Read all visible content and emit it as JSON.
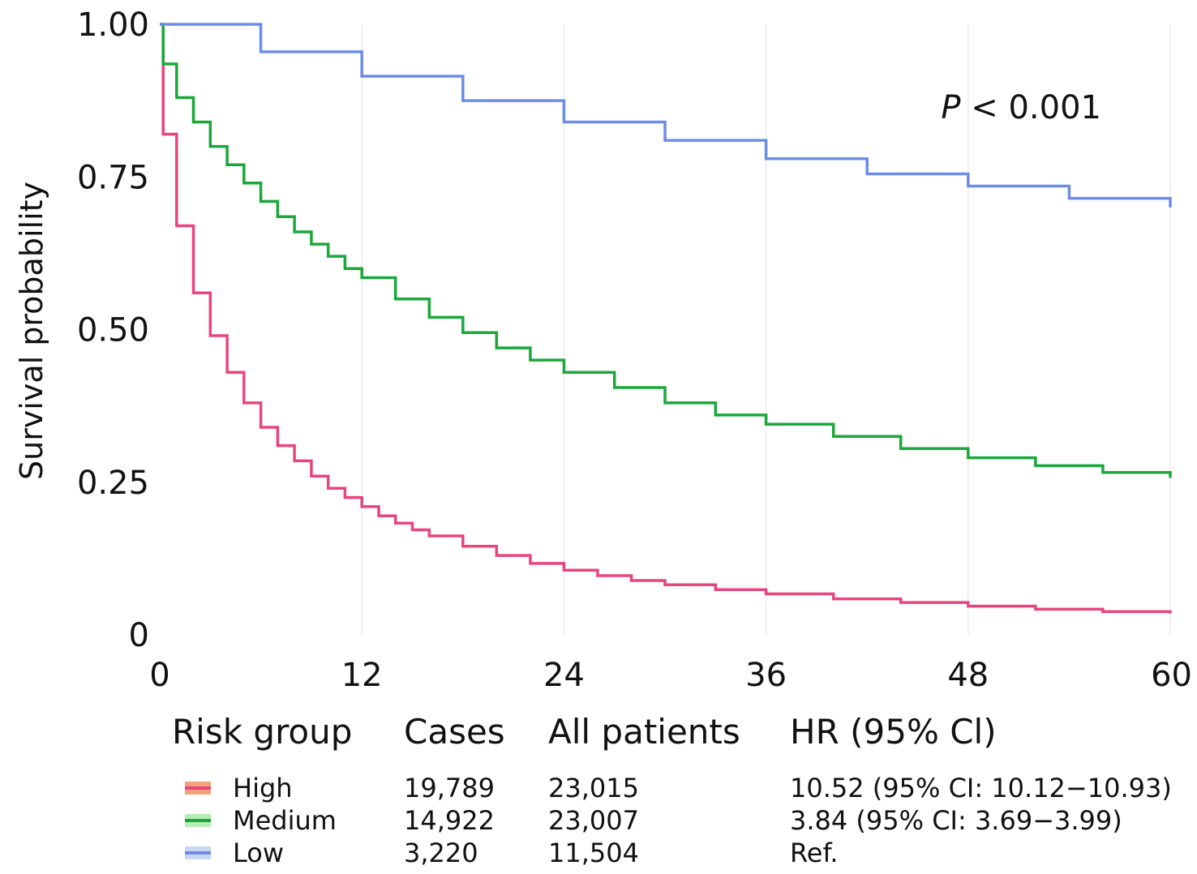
{
  "chart_data": {
    "type": "line",
    "ylabel": "Survival probability",
    "xlabel": "",
    "x_ticks": [
      "0",
      "12",
      "24",
      "36",
      "48",
      "60"
    ],
    "y_ticks": [
      "0",
      "0.25",
      "0.50",
      "0.75",
      "1.00"
    ],
    "xlim": [
      0,
      60
    ],
    "ylim": [
      0,
      1
    ],
    "grid": "vertical",
    "p_value": {
      "italic": "P",
      "rest": " < 0.001"
    },
    "series": [
      {
        "name": "High",
        "color": "#e8457c",
        "x": [
          0,
          0.2,
          1,
          2,
          3,
          4,
          5,
          6,
          7,
          8,
          9,
          10,
          11,
          12,
          13,
          14,
          15,
          16,
          18,
          20,
          22,
          24,
          26,
          28,
          30,
          33,
          36,
          40,
          44,
          48,
          52,
          56,
          60
        ],
        "y": [
          1.0,
          0.82,
          0.67,
          0.56,
          0.49,
          0.43,
          0.38,
          0.34,
          0.31,
          0.285,
          0.26,
          0.24,
          0.225,
          0.21,
          0.195,
          0.183,
          0.172,
          0.162,
          0.145,
          0.13,
          0.117,
          0.106,
          0.097,
          0.089,
          0.082,
          0.074,
          0.067,
          0.059,
          0.053,
          0.047,
          0.042,
          0.038,
          0.035
        ]
      },
      {
        "name": "Medium",
        "color": "#1aa83a",
        "x": [
          0,
          0.2,
          1,
          2,
          3,
          4,
          5,
          6,
          7,
          8,
          9,
          10,
          11,
          12,
          14,
          16,
          18,
          20,
          22,
          24,
          27,
          30,
          33,
          36,
          40,
          44,
          48,
          52,
          56,
          60
        ],
        "y": [
          1.0,
          0.935,
          0.88,
          0.84,
          0.8,
          0.77,
          0.74,
          0.71,
          0.685,
          0.66,
          0.64,
          0.62,
          0.6,
          0.585,
          0.55,
          0.52,
          0.495,
          0.47,
          0.45,
          0.43,
          0.405,
          0.38,
          0.36,
          0.345,
          0.325,
          0.305,
          0.29,
          0.277,
          0.266,
          0.257
        ]
      },
      {
        "name": "Low",
        "color": "#6b8de8",
        "x": [
          0,
          6,
          12,
          18,
          24,
          30,
          36,
          42,
          48,
          54,
          60
        ],
        "y": [
          1.0,
          0.955,
          0.915,
          0.875,
          0.84,
          0.81,
          0.78,
          0.755,
          0.735,
          0.715,
          0.7
        ]
      }
    ]
  },
  "legend": {
    "headers": [
      "Risk group",
      "Cases",
      "All patients",
      "HR (95% Cl)"
    ],
    "rows": [
      {
        "group": "High",
        "cases": "19,789",
        "all": "23,015",
        "hr": "10.52 (95% CI: 10.12−10.93)",
        "color": "#e8457c",
        "band": "#f4a07a"
      },
      {
        "group": "Medium",
        "cases": "14,922",
        "all": "23,007",
        "hr": "3.84 (95% CI: 3.69−3.99)",
        "color": "#1aa83a",
        "band": "#b6ecb6"
      },
      {
        "group": "Low",
        "cases": "3,220",
        "all": "11,504",
        "hr": "Ref.",
        "color": "#6b8de8",
        "band": "#c9d7f2"
      }
    ]
  }
}
